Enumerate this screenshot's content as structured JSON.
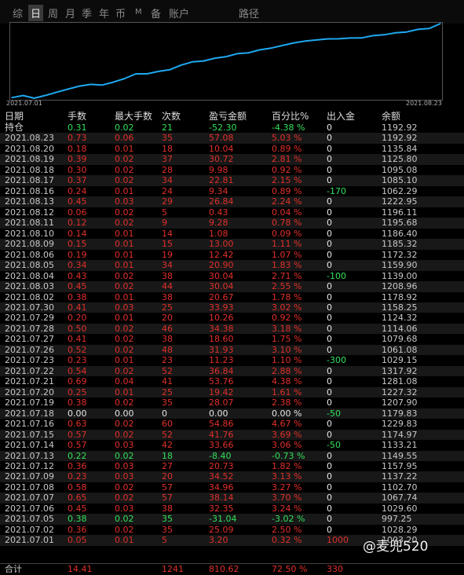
{
  "tabs": [
    {
      "label": "综",
      "active": false
    },
    {
      "label": "日",
      "active": true
    },
    {
      "label": "周",
      "active": false
    },
    {
      "label": "月",
      "active": false
    },
    {
      "label": "季",
      "active": false
    },
    {
      "label": "年",
      "active": false
    },
    {
      "label": "币",
      "active": false
    },
    {
      "label": "M",
      "active": false
    },
    {
      "label": "备",
      "active": false
    },
    {
      "label": "账户",
      "active": false
    },
    {
      "label": "路径",
      "active": false
    }
  ],
  "chart": {
    "start_label": "2021.07.01",
    "end_label": "2021.08.23",
    "line_color": "#1fa8f0"
  },
  "chart_data": {
    "type": "line",
    "x": [
      "2021.07.01",
      "2021.07.02",
      "2021.07.05",
      "2021.07.06",
      "2021.07.07",
      "2021.07.08",
      "2021.07.09",
      "2021.07.12",
      "2021.07.13",
      "2021.07.14",
      "2021.07.15",
      "2021.07.16",
      "2021.07.18",
      "2021.07.19",
      "2021.07.20",
      "2021.07.21",
      "2021.07.22",
      "2021.07.23",
      "2021.07.26",
      "2021.07.27",
      "2021.07.28",
      "2021.07.29",
      "2021.07.30",
      "2021.08.02",
      "2021.08.03",
      "2021.08.04",
      "2021.08.05",
      "2021.08.06",
      "2021.08.09",
      "2021.08.10",
      "2021.08.11",
      "2021.08.12",
      "2021.08.13",
      "2021.08.16",
      "2021.08.17",
      "2021.08.18",
      "2021.08.19",
      "2021.08.20",
      "2021.08.23"
    ],
    "values": [
      3.2,
      28.29,
      -2.75,
      29.6,
      67.74,
      102.7,
      137.22,
      157.95,
      149.55,
      183.21,
      224.97,
      279.83,
      279.83,
      307.9,
      327.32,
      381.08,
      417.92,
      429.15,
      461.08,
      479.68,
      514.06,
      524.32,
      558.25,
      578.92,
      608.95,
      638.99,
      659.89,
      672.32,
      685.32,
      686.4,
      695.68,
      696.11,
      722.95,
      732.29,
      755.1,
      765.08,
      795.8,
      805.84,
      862.92
    ]
  },
  "table": {
    "headers": [
      "日期",
      "手数",
      "最大手数",
      "次数",
      "盈亏金额",
      "百分比%",
      "出入金",
      "余额"
    ],
    "rows": [
      {
        "date": "持仓",
        "lots": "0.31",
        "max": "0.02",
        "count": "21",
        "pnl": "-52.30",
        "pct": "-4.38 %",
        "flow": "0",
        "bal": "1192.92",
        "tone": "green"
      },
      {
        "date": "2021.08.23",
        "lots": "0.73",
        "max": "0.06",
        "count": "35",
        "pnl": "57.08",
        "pct": "5.03 %",
        "flow": "0",
        "bal": "1192.92",
        "tone": "red"
      },
      {
        "date": "2021.08.20",
        "lots": "0.18",
        "max": "0.01",
        "count": "18",
        "pnl": "10.04",
        "pct": "0.89 %",
        "flow": "0",
        "bal": "1135.84",
        "tone": "red"
      },
      {
        "date": "2021.08.19",
        "lots": "0.39",
        "max": "0.02",
        "count": "37",
        "pnl": "30.72",
        "pct": "2.81 %",
        "flow": "0",
        "bal": "1125.80",
        "tone": "red"
      },
      {
        "date": "2021.08.18",
        "lots": "0.30",
        "max": "0.02",
        "count": "28",
        "pnl": "9.98",
        "pct": "0.92 %",
        "flow": "0",
        "bal": "1095.08",
        "tone": "red"
      },
      {
        "date": "2021.08.17",
        "lots": "0.37",
        "max": "0.02",
        "count": "34",
        "pnl": "22.81",
        "pct": "2.15 %",
        "flow": "0",
        "bal": "1085.10",
        "tone": "red"
      },
      {
        "date": "2021.08.16",
        "lots": "0.24",
        "max": "0.01",
        "count": "24",
        "pnl": "9.34",
        "pct": "0.89 %",
        "flow": "-170",
        "bal": "1062.29",
        "tone": "red",
        "flow_tone": "green"
      },
      {
        "date": "2021.08.13",
        "lots": "0.45",
        "max": "0.03",
        "count": "29",
        "pnl": "26.84",
        "pct": "2.24 %",
        "flow": "0",
        "bal": "1222.95",
        "tone": "red"
      },
      {
        "date": "2021.08.12",
        "lots": "0.06",
        "max": "0.02",
        "count": "5",
        "pnl": "0.43",
        "pct": "0.04 %",
        "flow": "0",
        "bal": "1196.11",
        "tone": "red"
      },
      {
        "date": "2021.08.11",
        "lots": "0.12",
        "max": "0.02",
        "count": "9",
        "pnl": "9.28",
        "pct": "0.78 %",
        "flow": "0",
        "bal": "1195.68",
        "tone": "red"
      },
      {
        "date": "2021.08.10",
        "lots": "0.14",
        "max": "0.01",
        "count": "14",
        "pnl": "1.08",
        "pct": "0.09 %",
        "flow": "0",
        "bal": "1186.40",
        "tone": "red"
      },
      {
        "date": "2021.08.09",
        "lots": "0.15",
        "max": "0.01",
        "count": "15",
        "pnl": "13.00",
        "pct": "1.11 %",
        "flow": "0",
        "bal": "1185.32",
        "tone": "red"
      },
      {
        "date": "2021.08.06",
        "lots": "0.19",
        "max": "0.01",
        "count": "19",
        "pnl": "12.42",
        "pct": "1.07 %",
        "flow": "0",
        "bal": "1172.32",
        "tone": "red"
      },
      {
        "date": "2021.08.05",
        "lots": "0.34",
        "max": "0.01",
        "count": "34",
        "pnl": "20.90",
        "pct": "1.83 %",
        "flow": "0",
        "bal": "1159.90",
        "tone": "red"
      },
      {
        "date": "2021.08.04",
        "lots": "0.43",
        "max": "0.02",
        "count": "38",
        "pnl": "30.04",
        "pct": "2.71 %",
        "flow": "-100",
        "bal": "1139.00",
        "tone": "red",
        "flow_tone": "green"
      },
      {
        "date": "2021.08.03",
        "lots": "0.45",
        "max": "0.02",
        "count": "44",
        "pnl": "30.04",
        "pct": "2.55 %",
        "flow": "0",
        "bal": "1208.96",
        "tone": "red"
      },
      {
        "date": "2021.08.02",
        "lots": "0.38",
        "max": "0.01",
        "count": "38",
        "pnl": "20.67",
        "pct": "1.78 %",
        "flow": "0",
        "bal": "1178.92",
        "tone": "red"
      },
      {
        "date": "2021.07.30",
        "lots": "0.41",
        "max": "0.03",
        "count": "25",
        "pnl": "33.93",
        "pct": "3.02 %",
        "flow": "0",
        "bal": "1158.25",
        "tone": "red"
      },
      {
        "date": "2021.07.29",
        "lots": "0.20",
        "max": "0.01",
        "count": "20",
        "pnl": "10.26",
        "pct": "0.92 %",
        "flow": "0",
        "bal": "1124.32",
        "tone": "red"
      },
      {
        "date": "2021.07.28",
        "lots": "0.50",
        "max": "0.02",
        "count": "46",
        "pnl": "34.38",
        "pct": "3.18 %",
        "flow": "0",
        "bal": "1114.06",
        "tone": "red"
      },
      {
        "date": "2021.07.27",
        "lots": "0.41",
        "max": "0.02",
        "count": "38",
        "pnl": "18.60",
        "pct": "1.75 %",
        "flow": "0",
        "bal": "1079.68",
        "tone": "red"
      },
      {
        "date": "2021.07.26",
        "lots": "0.52",
        "max": "0.02",
        "count": "48",
        "pnl": "31.93",
        "pct": "3.10 %",
        "flow": "0",
        "bal": "1061.08",
        "tone": "red"
      },
      {
        "date": "2021.07.23",
        "lots": "0.23",
        "max": "0.01",
        "count": "23",
        "pnl": "11.23",
        "pct": "1.10 %",
        "flow": "-300",
        "bal": "1029.15",
        "tone": "red",
        "flow_tone": "green"
      },
      {
        "date": "2021.07.22",
        "lots": "0.54",
        "max": "0.02",
        "count": "52",
        "pnl": "36.84",
        "pct": "2.88 %",
        "flow": "0",
        "bal": "1317.92",
        "tone": "red"
      },
      {
        "date": "2021.07.21",
        "lots": "0.69",
        "max": "0.04",
        "count": "41",
        "pnl": "53.76",
        "pct": "4.38 %",
        "flow": "0",
        "bal": "1281.08",
        "tone": "red"
      },
      {
        "date": "2021.07.20",
        "lots": "0.25",
        "max": "0.01",
        "count": "25",
        "pnl": "19.42",
        "pct": "1.61 %",
        "flow": "0",
        "bal": "1227.32",
        "tone": "red"
      },
      {
        "date": "2021.07.19",
        "lots": "0.38",
        "max": "0.02",
        "count": "35",
        "pnl": "28.07",
        "pct": "2.38 %",
        "flow": "0",
        "bal": "1207.90",
        "tone": "red"
      },
      {
        "date": "2021.07.18",
        "lots": "0.00",
        "max": "0.00",
        "count": "0",
        "pnl": "0.00",
        "pct": "0.00 %",
        "flow": "-50",
        "bal": "1179.83",
        "tone": "white",
        "flow_tone": "green"
      },
      {
        "date": "2021.07.16",
        "lots": "0.63",
        "max": "0.02",
        "count": "60",
        "pnl": "54.86",
        "pct": "4.67 %",
        "flow": "0",
        "bal": "1229.83",
        "tone": "red"
      },
      {
        "date": "2021.07.15",
        "lots": "0.57",
        "max": "0.02",
        "count": "52",
        "pnl": "41.76",
        "pct": "3.69 %",
        "flow": "0",
        "bal": "1174.97",
        "tone": "red"
      },
      {
        "date": "2021.07.14",
        "lots": "0.57",
        "max": "0.03",
        "count": "42",
        "pnl": "33.66",
        "pct": "3.06 %",
        "flow": "-50",
        "bal": "1133.21",
        "tone": "red",
        "flow_tone": "green"
      },
      {
        "date": "2021.07.13",
        "lots": "0.22",
        "max": "0.02",
        "count": "18",
        "pnl": "-8.40",
        "pct": "-0.73 %",
        "flow": "0",
        "bal": "1149.55",
        "tone": "green"
      },
      {
        "date": "2021.07.12",
        "lots": "0.36",
        "max": "0.03",
        "count": "27",
        "pnl": "20.73",
        "pct": "1.82 %",
        "flow": "0",
        "bal": "1157.95",
        "tone": "red"
      },
      {
        "date": "2021.07.09",
        "lots": "0.23",
        "max": "0.03",
        "count": "20",
        "pnl": "34.52",
        "pct": "3.13 %",
        "flow": "0",
        "bal": "1137.22",
        "tone": "red"
      },
      {
        "date": "2021.07.08",
        "lots": "0.58",
        "max": "0.02",
        "count": "57",
        "pnl": "34.96",
        "pct": "3.27 %",
        "flow": "0",
        "bal": "1102.70",
        "tone": "red"
      },
      {
        "date": "2021.07.07",
        "lots": "0.65",
        "max": "0.02",
        "count": "57",
        "pnl": "38.14",
        "pct": "3.70 %",
        "flow": "0",
        "bal": "1067.74",
        "tone": "red"
      },
      {
        "date": "2021.07.06",
        "lots": "0.45",
        "max": "0.03",
        "count": "38",
        "pnl": "32.35",
        "pct": "3.24 %",
        "flow": "0",
        "bal": "1029.60",
        "tone": "red"
      },
      {
        "date": "2021.07.05",
        "lots": "0.38",
        "max": "0.02",
        "count": "35",
        "pnl": "-31.04",
        "pct": "-3.02 %",
        "flow": "0",
        "bal": "997.25",
        "tone": "green"
      },
      {
        "date": "2021.07.02",
        "lots": "0.36",
        "max": "0.02",
        "count": "35",
        "pnl": "25.09",
        "pct": "2.50 %",
        "flow": "0",
        "bal": "1028.29",
        "tone": "red"
      },
      {
        "date": "2021.07.01",
        "lots": "0.05",
        "max": "0.01",
        "count": "5",
        "pnl": "3.20",
        "pct": "0.32 %",
        "flow": "1000",
        "bal": "1003.20",
        "tone": "red",
        "flow_tone": "red"
      }
    ],
    "total": {
      "label": "合计",
      "lots": "14.41",
      "max": "",
      "count": "1241",
      "pnl": "810.62",
      "pct": "72.50 %",
      "flow": "330",
      "bal": ""
    }
  },
  "watermark": "@麦兜520"
}
